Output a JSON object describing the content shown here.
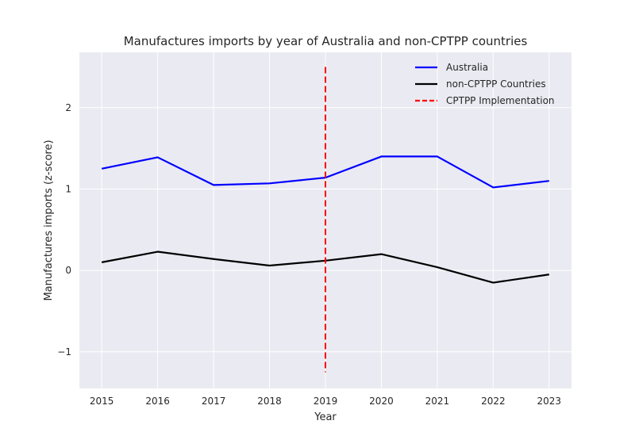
{
  "chart_data": {
    "type": "line",
    "title": "Manufactures imports by year of Australia and non-CPTPP countries",
    "xlabel": "Year",
    "ylabel": "Manufactures imports (z-score)",
    "x": [
      2015,
      2016,
      2017,
      2018,
      2019,
      2020,
      2021,
      2022,
      2023
    ],
    "x_ticks": [
      "2015",
      "2016",
      "2017",
      "2018",
      "2019",
      "2020",
      "2021",
      "2022",
      "2023"
    ],
    "y_ticks": [
      -1,
      0,
      1,
      2
    ],
    "y_tick_labels": [
      "−1",
      "0",
      "1",
      "2"
    ],
    "xlim": [
      2014.6,
      2023.4
    ],
    "ylim": [
      -1.45,
      2.68
    ],
    "grid": true,
    "legend_position": "top-right",
    "series": [
      {
        "name": "Australia",
        "color": "#0000ff",
        "style": "solid",
        "values": [
          1.25,
          1.39,
          1.05,
          1.07,
          1.14,
          1.4,
          1.4,
          1.02,
          1.1
        ]
      },
      {
        "name": "non-CPTPP Countries",
        "color": "#000000",
        "style": "solid",
        "values": [
          0.1,
          0.23,
          0.14,
          0.06,
          0.12,
          0.2,
          0.04,
          -0.15,
          -0.05
        ]
      }
    ],
    "vline": {
      "name": "CPTPP Implementation",
      "x": 2019,
      "y_range": [
        -1.25,
        2.5
      ],
      "color": "#ff0000",
      "style": "dashed"
    }
  }
}
